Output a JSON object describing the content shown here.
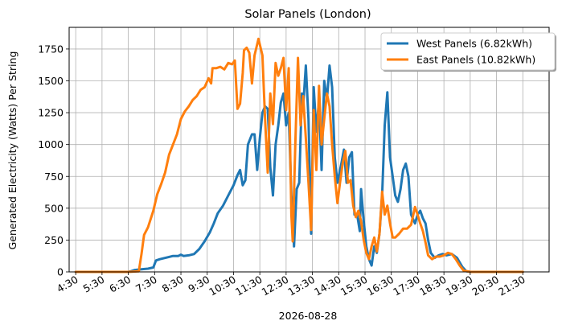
{
  "chart_data": {
    "type": "line",
    "title": "Solar Panels (London)",
    "xlabel": "2026-08-28",
    "ylabel": "Generated Electricity (Watts) Per String",
    "xlim": [
      4.25,
      22.5
    ],
    "ylim": [
      0,
      1920
    ],
    "grid": true,
    "legend_position": "top-right",
    "x_ticks": [
      "4:30",
      "5:30",
      "6:30",
      "7:30",
      "8:30",
      "9:30",
      "10:30",
      "11:30",
      "12:30",
      "13:30",
      "14:30",
      "15:30",
      "16:30",
      "17:30",
      "18:30",
      "19:30",
      "20:30",
      "21:30"
    ],
    "x_tick_values": [
      4.5,
      5.5,
      6.5,
      7.5,
      8.5,
      9.5,
      10.5,
      11.5,
      12.5,
      13.5,
      14.5,
      15.5,
      16.5,
      17.5,
      18.5,
      19.5,
      20.5,
      21.5
    ],
    "y_ticks": [
      "0",
      "250",
      "500",
      "750",
      "1000",
      "1250",
      "1500",
      "1750"
    ],
    "y_tick_values": [
      0,
      250,
      500,
      750,
      1000,
      1250,
      1500,
      1750
    ],
    "series": [
      {
        "name": "West Panels (6.82kWh)",
        "color": "#1f77b4",
        "points": [
          [
            4.5,
            0
          ],
          [
            5.5,
            0
          ],
          [
            6.5,
            0
          ],
          [
            6.6,
            5
          ],
          [
            6.75,
            15
          ],
          [
            7.0,
            20
          ],
          [
            7.25,
            25
          ],
          [
            7.45,
            35
          ],
          [
            7.55,
            90
          ],
          [
            7.7,
            100
          ],
          [
            8.0,
            115
          ],
          [
            8.2,
            125
          ],
          [
            8.4,
            125
          ],
          [
            8.5,
            135
          ],
          [
            8.6,
            125
          ],
          [
            8.8,
            130
          ],
          [
            9.0,
            140
          ],
          [
            9.2,
            180
          ],
          [
            9.4,
            240
          ],
          [
            9.6,
            310
          ],
          [
            9.75,
            380
          ],
          [
            9.9,
            460
          ],
          [
            10.1,
            520
          ],
          [
            10.3,
            600
          ],
          [
            10.5,
            680
          ],
          [
            10.65,
            760
          ],
          [
            10.75,
            800
          ],
          [
            10.85,
            680
          ],
          [
            10.95,
            720
          ],
          [
            11.05,
            1000
          ],
          [
            11.2,
            1080
          ],
          [
            11.3,
            1080
          ],
          [
            11.4,
            800
          ],
          [
            11.5,
            1050
          ],
          [
            11.6,
            1250
          ],
          [
            11.7,
            1300
          ],
          [
            11.8,
            1280
          ],
          [
            11.9,
            820
          ],
          [
            12.0,
            600
          ],
          [
            12.1,
            1000
          ],
          [
            12.2,
            1150
          ],
          [
            12.3,
            1330
          ],
          [
            12.4,
            1400
          ],
          [
            12.5,
            1150
          ],
          [
            12.6,
            1250
          ],
          [
            12.7,
            600
          ],
          [
            12.8,
            200
          ],
          [
            12.9,
            650
          ],
          [
            13.0,
            700
          ],
          [
            13.1,
            1400
          ],
          [
            13.15,
            1300
          ],
          [
            13.25,
            1620
          ],
          [
            13.35,
            1200
          ],
          [
            13.45,
            300
          ],
          [
            13.55,
            1450
          ],
          [
            13.65,
            1100
          ],
          [
            13.75,
            1350
          ],
          [
            13.85,
            800
          ],
          [
            13.95,
            1500
          ],
          [
            14.05,
            1350
          ],
          [
            14.15,
            1620
          ],
          [
            14.25,
            1450
          ],
          [
            14.35,
            900
          ],
          [
            14.45,
            700
          ],
          [
            14.6,
            850
          ],
          [
            14.7,
            960
          ],
          [
            14.8,
            700
          ],
          [
            14.9,
            900
          ],
          [
            15.0,
            940
          ],
          [
            15.1,
            450
          ],
          [
            15.2,
            450
          ],
          [
            15.3,
            320
          ],
          [
            15.35,
            650
          ],
          [
            15.45,
            400
          ],
          [
            15.55,
            200
          ],
          [
            15.65,
            100
          ],
          [
            15.75,
            50
          ],
          [
            15.85,
            200
          ],
          [
            15.95,
            150
          ],
          [
            16.05,
            300
          ],
          [
            16.15,
            600
          ],
          [
            16.25,
            1150
          ],
          [
            16.35,
            1410
          ],
          [
            16.45,
            900
          ],
          [
            16.55,
            750
          ],
          [
            16.65,
            600
          ],
          [
            16.75,
            550
          ],
          [
            16.85,
            650
          ],
          [
            16.95,
            800
          ],
          [
            17.05,
            850
          ],
          [
            17.15,
            750
          ],
          [
            17.25,
            450
          ],
          [
            17.4,
            380
          ],
          [
            17.5,
            450
          ],
          [
            17.6,
            480
          ],
          [
            17.7,
            420
          ],
          [
            17.8,
            380
          ],
          [
            17.9,
            250
          ],
          [
            18.0,
            150
          ],
          [
            18.15,
            110
          ],
          [
            18.3,
            130
          ],
          [
            18.45,
            140
          ],
          [
            18.6,
            130
          ],
          [
            18.8,
            140
          ],
          [
            19.0,
            110
          ],
          [
            19.2,
            40
          ],
          [
            19.35,
            5
          ],
          [
            19.5,
            0
          ],
          [
            20.5,
            0
          ],
          [
            21.5,
            0
          ]
        ]
      },
      {
        "name": "East Panels (10.82kWh)",
        "color": "#ff7f0e",
        "points": [
          [
            4.5,
            0
          ],
          [
            5.5,
            0
          ],
          [
            6.5,
            0
          ],
          [
            6.9,
            5
          ],
          [
            7.0,
            140
          ],
          [
            7.1,
            290
          ],
          [
            7.25,
            350
          ],
          [
            7.45,
            480
          ],
          [
            7.6,
            610
          ],
          [
            7.75,
            690
          ],
          [
            7.9,
            780
          ],
          [
            8.05,
            920
          ],
          [
            8.2,
            1000
          ],
          [
            8.35,
            1080
          ],
          [
            8.5,
            1200
          ],
          [
            8.65,
            1260
          ],
          [
            8.8,
            1300
          ],
          [
            8.95,
            1350
          ],
          [
            9.1,
            1380
          ],
          [
            9.25,
            1430
          ],
          [
            9.4,
            1450
          ],
          [
            9.55,
            1520
          ],
          [
            9.65,
            1480
          ],
          [
            9.7,
            1600
          ],
          [
            9.85,
            1600
          ],
          [
            10.0,
            1610
          ],
          [
            10.15,
            1590
          ],
          [
            10.3,
            1640
          ],
          [
            10.45,
            1630
          ],
          [
            10.55,
            1660
          ],
          [
            10.65,
            1280
          ],
          [
            10.75,
            1320
          ],
          [
            10.85,
            1560
          ],
          [
            10.9,
            1740
          ],
          [
            11.0,
            1760
          ],
          [
            11.1,
            1720
          ],
          [
            11.2,
            1480
          ],
          [
            11.3,
            1700
          ],
          [
            11.45,
            1830
          ],
          [
            11.6,
            1700
          ],
          [
            11.7,
            1200
          ],
          [
            11.8,
            780
          ],
          [
            11.9,
            1400
          ],
          [
            12.0,
            1160
          ],
          [
            12.1,
            1640
          ],
          [
            12.2,
            1540
          ],
          [
            12.3,
            1600
          ],
          [
            12.4,
            1680
          ],
          [
            12.5,
            1270
          ],
          [
            12.6,
            1600
          ],
          [
            12.7,
            450
          ],
          [
            12.75,
            240
          ],
          [
            12.85,
            1000
          ],
          [
            12.95,
            1680
          ],
          [
            13.05,
            1150
          ],
          [
            13.15,
            1380
          ],
          [
            13.25,
            1050
          ],
          [
            13.35,
            700
          ],
          [
            13.45,
            330
          ],
          [
            13.55,
            1270
          ],
          [
            13.65,
            800
          ],
          [
            13.75,
            1460
          ],
          [
            13.85,
            1000
          ],
          [
            13.95,
            1200
          ],
          [
            14.05,
            1400
          ],
          [
            14.15,
            1300
          ],
          [
            14.25,
            1000
          ],
          [
            14.35,
            750
          ],
          [
            14.45,
            540
          ],
          [
            14.55,
            700
          ],
          [
            14.65,
            850
          ],
          [
            14.75,
            950
          ],
          [
            14.85,
            700
          ],
          [
            14.95,
            720
          ],
          [
            15.05,
            520
          ],
          [
            15.15,
            430
          ],
          [
            15.25,
            480
          ],
          [
            15.35,
            400
          ],
          [
            15.45,
            250
          ],
          [
            15.55,
            150
          ],
          [
            15.65,
            100
          ],
          [
            15.75,
            200
          ],
          [
            15.85,
            270
          ],
          [
            15.95,
            160
          ],
          [
            16.05,
            300
          ],
          [
            16.15,
            630
          ],
          [
            16.25,
            450
          ],
          [
            16.35,
            520
          ],
          [
            16.45,
            380
          ],
          [
            16.55,
            270
          ],
          [
            16.65,
            270
          ],
          [
            16.8,
            300
          ],
          [
            16.95,
            340
          ],
          [
            17.1,
            340
          ],
          [
            17.25,
            370
          ],
          [
            17.4,
            510
          ],
          [
            17.5,
            450
          ],
          [
            17.6,
            380
          ],
          [
            17.7,
            320
          ],
          [
            17.8,
            230
          ],
          [
            17.9,
            130
          ],
          [
            18.05,
            100
          ],
          [
            18.2,
            120
          ],
          [
            18.35,
            120
          ],
          [
            18.5,
            130
          ],
          [
            18.65,
            150
          ],
          [
            18.8,
            140
          ],
          [
            18.95,
            100
          ],
          [
            19.1,
            50
          ],
          [
            19.25,
            10
          ],
          [
            19.5,
            0
          ],
          [
            20.5,
            0
          ],
          [
            21.5,
            0
          ]
        ]
      }
    ]
  }
}
